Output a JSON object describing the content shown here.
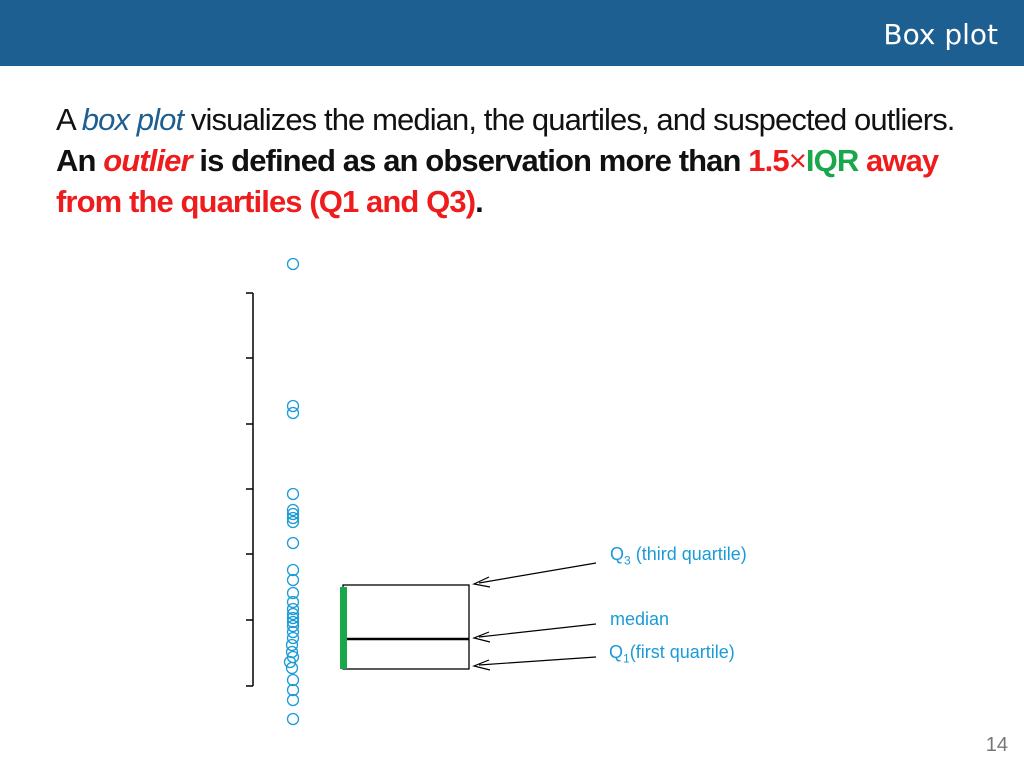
{
  "header": {
    "title": "Box plot"
  },
  "intro": {
    "a": "A ",
    "box_plot": "box plot",
    "rest1": " visualizes the median, the quartiles, and suspected outliers. ",
    "an": "An ",
    "outlier": "outlier",
    "defined": " is defined as an observation more than ",
    "one_five": "1.5",
    "times": "×",
    "iqr": "IQR",
    "away": " away from the quartiles (Q1 and Q3)",
    "period": "."
  },
  "annotations": {
    "q3_sym": "Q",
    "q3_sub": "3",
    "q3_text": " (third quartile)",
    "median": "median",
    "q1_sym": "Q",
    "q1_sub": "1",
    "q1_text": "(first quartile)"
  },
  "colors": {
    "header_bg": "#1d5f91",
    "annotation": "#1a9bd7",
    "points": "#1a9bd7",
    "whisker_highlight": "#1aa64a",
    "emphasis_red": "#ee1c1c"
  },
  "page_number": "14"
}
